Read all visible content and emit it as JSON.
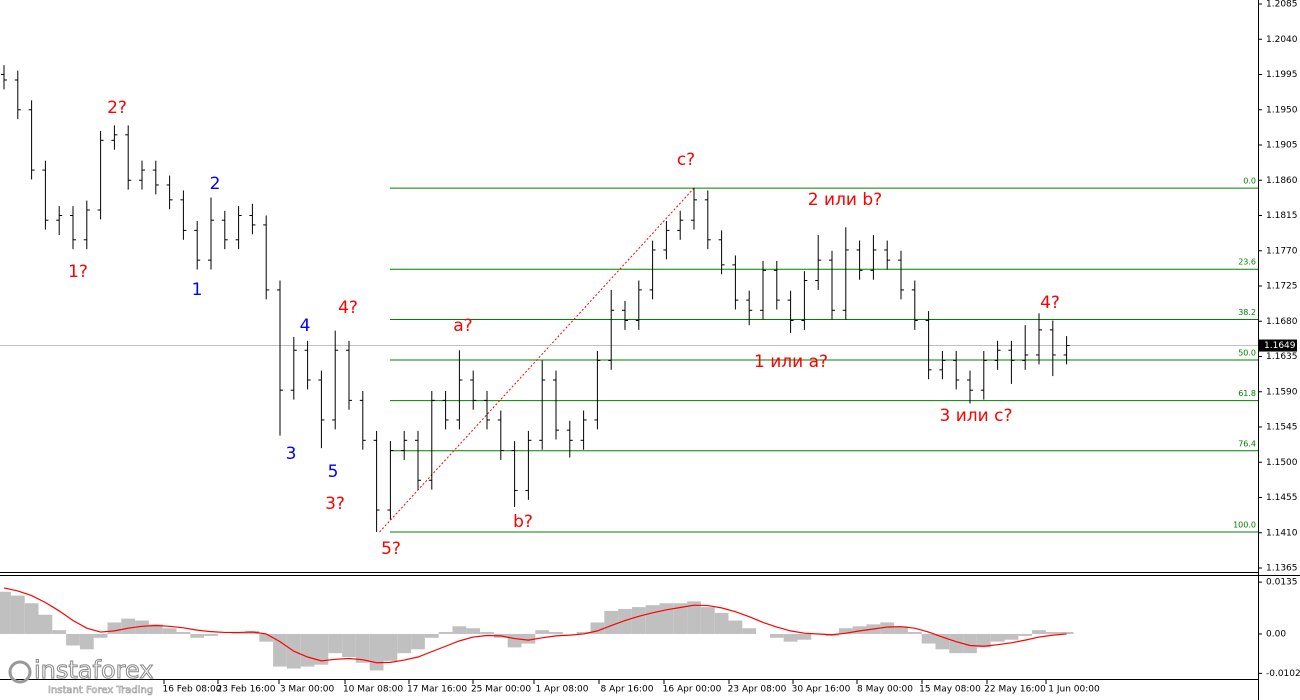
{
  "chart_data": [
    {
      "type": "ohlc",
      "color": "#000000",
      "open": [
        1.1995,
        1.1988,
        1.195,
        1.1873,
        1.1809,
        1.1815,
        1.1784,
        1.1822,
        1.1911,
        1.1918,
        1.186,
        1.1873,
        1.1854,
        1.1835,
        1.1796,
        1.1758,
        1.1809,
        1.1784,
        1.1815,
        1.1803,
        1.172,
        1.1592,
        1.1643,
        1.1605,
        1.1554,
        1.1643,
        1.1579,
        1.1528,
        1.1439,
        1.1515,
        1.1528,
        1.1477,
        1.1579,
        1.1554,
        1.1605,
        1.1579,
        1.1554,
        1.1515,
        1.1464,
        1.1528,
        1.1605,
        1.1541,
        1.1528,
        1.1554,
        1.163,
        1.1694,
        1.1681,
        1.172,
        1.1771,
        1.1796,
        1.1809,
        1.1835,
        1.1784,
        1.1752,
        1.1707,
        1.1694,
        1.1745,
        1.1707,
        1.1681,
        1.1732,
        1.1758,
        1.1694,
        1.1771,
        1.1745,
        1.1771,
        1.1758,
        1.172,
        1.1681,
        1.1618,
        1.163,
        1.1605,
        1.1592,
        1.163,
        1.1643,
        1.163,
        1.1637,
        1.1669,
        1.1637
      ],
      "high": [
        1.2007,
        1.2,
        1.1962,
        1.1885,
        1.1827,
        1.1827,
        1.1834,
        1.1923,
        1.193,
        1.193,
        1.1885,
        1.1885,
        1.1866,
        1.1847,
        1.1808,
        1.1838,
        1.1821,
        1.1827,
        1.183,
        1.1815,
        1.1732,
        1.166,
        1.1655,
        1.1617,
        1.1668,
        1.1655,
        1.1591,
        1.154,
        1.1527,
        1.154,
        1.154,
        1.1591,
        1.1591,
        1.1643,
        1.1617,
        1.1591,
        1.1566,
        1.1527,
        1.154,
        1.163,
        1.1617,
        1.1553,
        1.1566,
        1.1642,
        1.172,
        1.1706,
        1.1732,
        1.1783,
        1.1808,
        1.1821,
        1.185,
        1.1847,
        1.1796,
        1.1764,
        1.1719,
        1.1757,
        1.1757,
        1.1719,
        1.1744,
        1.179,
        1.177,
        1.18,
        1.1783,
        1.179,
        1.1783,
        1.177,
        1.1732,
        1.1693,
        1.1642,
        1.1642,
        1.1617,
        1.1642,
        1.1655,
        1.1655,
        1.1675,
        1.169,
        1.1681,
        1.1661
      ],
      "low": [
        1.1976,
        1.1938,
        1.1861,
        1.1797,
        1.179,
        1.1772,
        1.1772,
        1.181,
        1.1899,
        1.1848,
        1.1848,
        1.1842,
        1.1823,
        1.1784,
        1.1746,
        1.1746,
        1.1772,
        1.1772,
        1.1791,
        1.1708,
        1.1534,
        1.158,
        1.1593,
        1.1518,
        1.1542,
        1.1567,
        1.1516,
        1.1411,
        1.1427,
        1.1503,
        1.1465,
        1.1465,
        1.1542,
        1.1542,
        1.1567,
        1.1542,
        1.1503,
        1.1443,
        1.1452,
        1.1516,
        1.1529,
        1.1506,
        1.1516,
        1.1542,
        1.1618,
        1.1669,
        1.1669,
        1.1708,
        1.1759,
        1.1784,
        1.1797,
        1.1772,
        1.174,
        1.1695,
        1.1675,
        1.1682,
        1.1695,
        1.1665,
        1.1669,
        1.172,
        1.1682,
        1.1682,
        1.1733,
        1.1733,
        1.1746,
        1.1708,
        1.1669,
        1.1606,
        1.1606,
        1.1593,
        1.1575,
        1.158,
        1.1618,
        1.16,
        1.1618,
        1.1625,
        1.161,
        1.1625
      ],
      "close": [
        1.1988,
        1.195,
        1.1873,
        1.1809,
        1.1815,
        1.1784,
        1.1822,
        1.1911,
        1.1918,
        1.186,
        1.1873,
        1.1854,
        1.1835,
        1.1796,
        1.1758,
        1.1809,
        1.1784,
        1.1815,
        1.1803,
        1.172,
        1.1592,
        1.1643,
        1.1605,
        1.1554,
        1.1643,
        1.1579,
        1.1528,
        1.1439,
        1.1515,
        1.1528,
        1.1477,
        1.1579,
        1.1554,
        1.1605,
        1.1579,
        1.1554,
        1.1515,
        1.1464,
        1.1528,
        1.1605,
        1.1541,
        1.1528,
        1.1554,
        1.163,
        1.1694,
        1.1681,
        1.172,
        1.1771,
        1.1796,
        1.1809,
        1.1835,
        1.1784,
        1.1752,
        1.1707,
        1.1694,
        1.1745,
        1.1707,
        1.1681,
        1.1732,
        1.1758,
        1.1694,
        1.1771,
        1.1745,
        1.1771,
        1.1758,
        1.172,
        1.1681,
        1.1618,
        1.163,
        1.1605,
        1.1592,
        1.163,
        1.1643,
        1.163,
        1.1637,
        1.1669,
        1.1637,
        1.1649
      ],
      "ylim": [
        1.1365,
        1.2085
      ],
      "yticks": [
        1.2085,
        {
          "value": 1.204,
          "label": "1.2040"
        },
        1.1995,
        {
          "value": 1.195,
          "label": "1.1950"
        },
        1.1905,
        {
          "value": 1.186,
          "label": "1.1860"
        },
        1.1815,
        {
          "value": 1.177,
          "label": "1.1770"
        },
        1.1725,
        {
          "value": 1.168,
          "label": "1.1680"
        },
        1.1635,
        {
          "value": 1.159,
          "label": "1.1590"
        },
        1.1545,
        {
          "value": 1.15,
          "label": "1.1500"
        },
        1.1455,
        {
          "value": 1.141,
          "label": "1.1410"
        },
        1.1365
      ],
      "last_price": 1.1649,
      "x_tick_labels": [
        "16 Feb 08:00",
        "23 Feb 16:00",
        "3 Mar 00:00",
        "10 Mar 08:00",
        "17 Mar 16:00",
        "25 Mar 00:00",
        "1 Apr 08:00",
        "8 Apr 16:00",
        "16 Apr 00:00",
        "23 Apr 08:00",
        "30 Apr 16:00",
        "8 May 00:00",
        "15 May 08:00",
        "22 May 16:00",
        "1 Jun 00:00"
      ],
      "fib": {
        "high": 1.185,
        "low": 1.1411,
        "color": "#008000",
        "trend_color": "#ff0000",
        "levels": [
          {
            "value": 0,
            "label": "0.0"
          },
          23.6,
          38.2,
          {
            "value": 50,
            "label": "50.0"
          },
          61.8,
          76.4,
          {
            "value": 100,
            "label": "100.0"
          }
        ]
      },
      "annotations": [
        {
          "text": "1?",
          "color": "#ff0000"
        },
        {
          "text": "2?",
          "color": "#ff0000"
        },
        {
          "text": "3?",
          "color": "#ff0000"
        },
        {
          "text": "4?",
          "color": "#ff0000"
        },
        {
          "text": "5?",
          "color": "#ff0000"
        },
        {
          "text": "a?",
          "color": "#ff0000"
        },
        {
          "text": "b?",
          "color": "#ff0000"
        },
        {
          "text": "c?",
          "color": "#ff0000"
        },
        {
          "text": "2 или b?",
          "color": "#ff0000"
        },
        {
          "text": "1 или a?",
          "color": "#ff0000"
        },
        {
          "text": "3 или c?",
          "color": "#ff0000"
        },
        {
          "text": "4?",
          "color": "#ff0000"
        },
        {
          "text": "1",
          "color": "#0000ff"
        },
        {
          "text": "2",
          "color": "#0000ff"
        },
        {
          "text": "3",
          "color": "#0000ff"
        },
        {
          "text": "4",
          "color": "#0000ff"
        },
        {
          "text": "5",
          "color": "#0000ff"
        }
      ]
    },
    {
      "type": "macd",
      "histogram": {
        "color": "#c0c0c0",
        "values": [
          0.011,
          0.01,
          0.008,
          0.005,
          0.001,
          -0.003,
          -0.004,
          -0.001,
          0.003,
          0.004,
          0.0035,
          0.0025,
          0.0015,
          0.0005,
          -0.001,
          -0.0005,
          0.0,
          0.0005,
          0.0008,
          -0.002,
          -0.0085,
          -0.009,
          -0.0085,
          -0.008,
          -0.005,
          -0.006,
          -0.0075,
          -0.0095,
          -0.007,
          -0.005,
          -0.004,
          -0.001,
          0.0005,
          0.002,
          0.0015,
          0.0005,
          -0.001,
          -0.0035,
          -0.0025,
          0.001,
          0.0005,
          0.0,
          0.0005,
          0.003,
          0.006,
          0.0065,
          0.007,
          0.0075,
          0.008,
          0.008,
          0.0085,
          0.007,
          0.0055,
          0.0035,
          0.0015,
          0.0,
          -0.001,
          -0.002,
          -0.0015,
          0.0,
          -0.0005,
          0.0015,
          0.002,
          0.0025,
          0.003,
          0.002,
          0.0005,
          -0.0025,
          -0.004,
          -0.005,
          -0.005,
          -0.0035,
          -0.002,
          -0.0015,
          -0.0005,
          0.001,
          0.0005,
          0.0005
        ]
      },
      "signal": {
        "color": "#ff0000",
        "values": [
          0.012,
          0.0112,
          0.01,
          0.0082,
          0.006,
          0.0035,
          0.0015,
          0.0005,
          0.0008,
          0.0015,
          0.002,
          0.0022,
          0.002,
          0.0016,
          0.001,
          0.0006,
          0.0004,
          0.0004,
          0.0005,
          0.0,
          -0.002,
          -0.0045,
          -0.006,
          -0.007,
          -0.0066,
          -0.0064,
          -0.0067,
          -0.0075,
          -0.0074,
          -0.0068,
          -0.006,
          -0.0046,
          -0.0032,
          -0.0018,
          -0.0008,
          -0.0004,
          -0.0005,
          -0.0012,
          -0.0016,
          -0.001,
          -0.0005,
          -0.0003,
          0.0,
          0.0008,
          0.0022,
          0.0035,
          0.0046,
          0.0055,
          0.0063,
          0.0069,
          0.0075,
          0.0074,
          0.0068,
          0.0058,
          0.0045,
          0.003,
          0.0018,
          0.0008,
          0.0002,
          0.0,
          -0.0002,
          0.0002,
          0.0008,
          0.0013,
          0.0018,
          0.0019,
          0.0015,
          0.0005,
          -0.0008,
          -0.002,
          -0.003,
          -0.0032,
          -0.0028,
          -0.0023,
          -0.0016,
          -0.0008,
          -0.0003,
          0.0
        ]
      },
      "ylim": [
        -0.0159,
        0.0151
      ],
      "yticks": [
        0.0135,
        {
          "value": 0,
          "label": "0.00"
        },
        -0.01026
      ]
    }
  ],
  "watermark": {
    "name": "instaforex",
    "tagline": "Instant Forex Trading"
  }
}
